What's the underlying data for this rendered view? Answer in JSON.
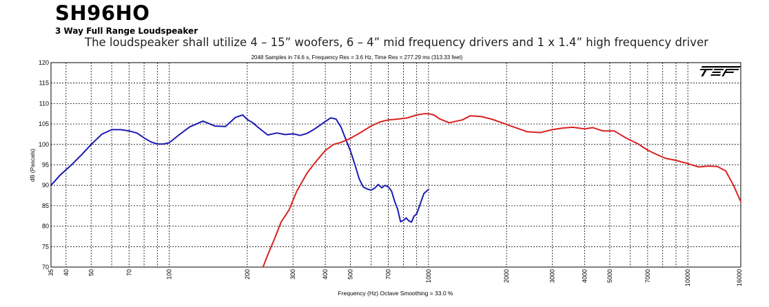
{
  "header": {
    "title": "SH96HO",
    "subtitle": "3 Way Full Range Loudspeaker",
    "spec": "The loudspeaker shall utilize 4 – 15” woofers, 6 – 4” mid frequency drivers and 1 x 1.4” high frequency driver",
    "measurement_info": "2048 Samples in 74.6 s, Frequency Res = 3.6 Hz, Time Res = 277.29 ms (313.33 feet)",
    "logo_text": "TEF"
  },
  "chart_data": {
    "type": "line",
    "xlabel": "Frequency (Hz) Octave Smoothing = 33.0 %",
    "ylabel": "dB (Pascals)",
    "xscale": "log",
    "xlim": [
      35,
      16000
    ],
    "ylim": [
      70,
      120
    ],
    "grid": true,
    "yticks": [
      "70",
      "75",
      "80",
      "85",
      "90",
      "95",
      "100",
      "105",
      "110",
      "115",
      "120"
    ],
    "xticks": [
      "35",
      "40",
      "50",
      "70",
      "100",
      "200",
      "300",
      "400",
      "500",
      "700",
      "1000",
      "2000",
      "3000",
      "4000",
      "5000",
      "7000",
      "10000",
      "16000"
    ],
    "series": [
      {
        "color": "#1a1ab4",
        "x": [
          35,
          38,
          42,
          46,
          50,
          55,
          60,
          65,
          70,
          75,
          80,
          85,
          90,
          95,
          100,
          110,
          120,
          135,
          150,
          165,
          180,
          192,
          200,
          210,
          220,
          240,
          260,
          280,
          300,
          320,
          340,
          360,
          380,
          400,
          420,
          440,
          460,
          480,
          500,
          520,
          540,
          560,
          580,
          600,
          620,
          640,
          660,
          680,
          700,
          720,
          740,
          760,
          780,
          800,
          820,
          840,
          860,
          880,
          900,
          930,
          960,
          1000
        ],
        "values": [
          90,
          92.5,
          95,
          97.5,
          100,
          102.5,
          103.6,
          103.6,
          103.3,
          102.8,
          101.6,
          100.6,
          100.1,
          100.1,
          100.4,
          102.5,
          104.3,
          105.7,
          104.5,
          104.4,
          106.6,
          107.2,
          106.1,
          105.3,
          104.2,
          102.3,
          102.8,
          102.4,
          102.6,
          102.2,
          102.7,
          103.6,
          104.6,
          105.6,
          106.5,
          106.2,
          104.2,
          101.2,
          98.4,
          95.1,
          91.6,
          89.6,
          89.1,
          88.8,
          89.3,
          90.2,
          89.4,
          90.0,
          89.6,
          88.6,
          86.1,
          84.2,
          81.1,
          81.4,
          82.0,
          81.3,
          81.0,
          82.5,
          83.0,
          85.5,
          88.0,
          89.0
        ]
      },
      {
        "color": "#d82020",
        "x": [
          230,
          240,
          255,
          270,
          290,
          310,
          340,
          370,
          400,
          430,
          460,
          500,
          550,
          600,
          650,
          700,
          760,
          830,
          900,
          960,
          1000,
          1050,
          1100,
          1200,
          1350,
          1450,
          1600,
          1750,
          1900,
          2100,
          2400,
          2700,
          3000,
          3300,
          3600,
          4000,
          4300,
          4700,
          5200,
          5800,
          6400,
          7000,
          7600,
          8200,
          9000,
          10000,
          11000,
          12000,
          13000,
          14000,
          15000,
          16000
        ],
        "values": [
          70,
          73,
          77,
          81,
          84,
          88.5,
          93,
          96,
          98.5,
          100,
          100.5,
          101.5,
          103,
          104.5,
          105.5,
          106,
          106.2,
          106.5,
          107.2,
          107.5,
          107.5,
          107.2,
          106.3,
          105.3,
          106.0,
          107.0,
          106.8,
          106.2,
          105.4,
          104.4,
          103.1,
          102.9,
          103.6,
          104.0,
          104.2,
          103.8,
          104.1,
          103.3,
          103.3,
          101.5,
          100.2,
          98.6,
          97.5,
          96.6,
          96.1,
          95.3,
          94.5,
          94.7,
          94.6,
          93.5,
          90.0,
          86.0
        ]
      }
    ]
  }
}
